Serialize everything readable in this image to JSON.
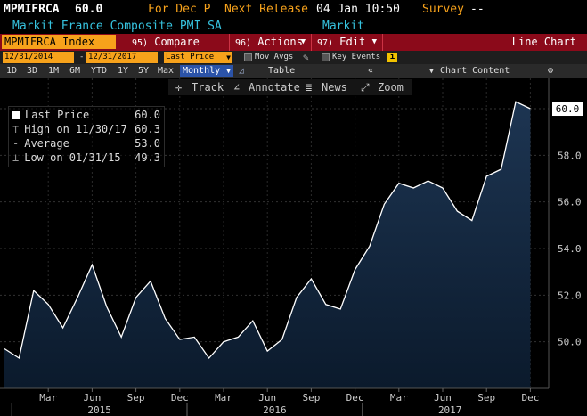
{
  "header": {
    "ticker": "MPMIFRCA",
    "last_value": "60.0",
    "period": "For Dec P",
    "next_release_label": "Next Release",
    "next_release_value": "04 Jan 10:50",
    "survey_label": "Survey",
    "survey_value": "--",
    "description": "Markit France Composite PMI SA",
    "source": "Markit"
  },
  "menubar": {
    "security": "MPMIFRCA Index",
    "compare_num": "95)",
    "compare": "Compare",
    "actions_num": "96)",
    "actions": "Actions",
    "edit_num": "97)",
    "edit": "Edit",
    "view": "Line Chart"
  },
  "options": {
    "start_date": "12/31/2014",
    "separator": "-",
    "end_date": "12/31/2017",
    "field": "Last Price",
    "mov_avgs": "Mov Avgs",
    "key_events": "Key Events"
  },
  "periods": [
    "1D",
    "3D",
    "1M",
    "6M",
    "YTD",
    "1Y",
    "5Y",
    "Max"
  ],
  "frequency": "Monthly",
  "table_label": "Table",
  "chart_content_label": "Chart Content",
  "tools": {
    "track": "Track",
    "annotate": "Annotate",
    "news": "News",
    "zoom": "Zoom"
  },
  "legend": {
    "last_price_label": "Last Price",
    "last_price_value": "60.0",
    "high_label": "High on 11/30/17",
    "high_value": "60.3",
    "average_label": "Average",
    "average_value": "53.0",
    "low_label": "Low on 01/31/15",
    "low_value": "49.3"
  },
  "colors": {
    "amber": "#f7a21b",
    "cyan": "#36c3df",
    "menu_red": "#8b0a1a",
    "line": "#ffffff",
    "area_top": "#1d3552",
    "area_bottom": "#0b1a2c"
  },
  "chart_data": {
    "type": "area",
    "x": [
      "Dec 2014",
      "Jan 2015",
      "Feb 2015",
      "Mar 2015",
      "Apr 2015",
      "May 2015",
      "Jun 2015",
      "Jul 2015",
      "Aug 2015",
      "Sep 2015",
      "Oct 2015",
      "Nov 2015",
      "Dec 2015",
      "Jan 2016",
      "Feb 2016",
      "Mar 2016",
      "Apr 2016",
      "May 2016",
      "Jun 2016",
      "Jul 2016",
      "Aug 2016",
      "Sep 2016",
      "Oct 2016",
      "Nov 2016",
      "Dec 2016",
      "Jan 2017",
      "Feb 2017",
      "Mar 2017",
      "Apr 2017",
      "May 2017",
      "Jun 2017",
      "Jul 2017",
      "Aug 2017",
      "Sep 2017",
      "Oct 2017",
      "Nov 2017",
      "Dec 2017"
    ],
    "values": [
      49.7,
      49.3,
      52.2,
      51.6,
      50.6,
      51.9,
      53.3,
      51.5,
      50.2,
      51.9,
      52.6,
      51.0,
      50.1,
      50.2,
      49.3,
      50.0,
      50.2,
      50.9,
      49.6,
      50.1,
      51.9,
      52.7,
      51.6,
      51.4,
      53.1,
      54.1,
      55.9,
      56.8,
      56.6,
      56.9,
      56.6,
      55.6,
      55.2,
      57.1,
      57.4,
      60.3,
      60.0
    ],
    "ylim": [
      48.0,
      61.3
    ],
    "yticks": [
      "50.0",
      "52.0",
      "54.0",
      "56.0",
      "58.0",
      "60.0"
    ],
    "last_label": "60.0",
    "month_ticks": [
      "Mar",
      "Jun",
      "Sep",
      "Dec",
      "Mar",
      "Jun",
      "Sep",
      "Dec",
      "Mar",
      "Jun",
      "Sep",
      "Dec"
    ],
    "years": [
      "2015",
      "2016",
      "2017"
    ]
  }
}
